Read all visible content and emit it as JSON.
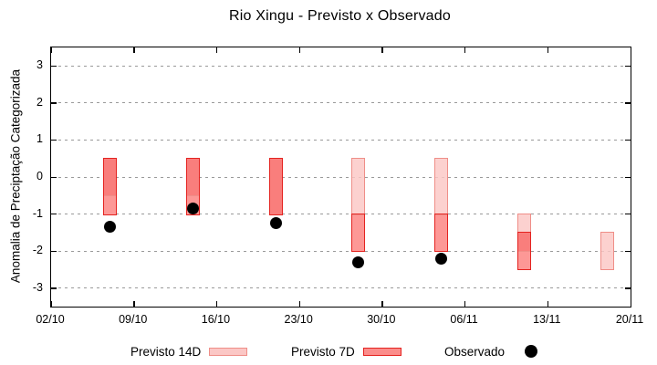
{
  "chart_data": {
    "type": "bar",
    "subtype": "forecast-interval-bars-with-observed-scatter",
    "title": "Rio Xingu - Previsto x Observado",
    "ylabel": "Anomalia de Preciptação Categorizada",
    "xlabel": "",
    "x_tick_labels": [
      "02/10",
      "09/10",
      "16/10",
      "23/10",
      "30/10",
      "06/11",
      "13/11",
      "20/11"
    ],
    "xlim_dates": [
      "02/10",
      "20/11"
    ],
    "y_ticks": [
      -3,
      -2,
      -1,
      0,
      1,
      2,
      3
    ],
    "ylim": [
      -3.5,
      3.5
    ],
    "grid": "horizontal-dashed-gray",
    "grid_color": "#9a9a9a",
    "legend_position": "below-plot",
    "fill_overlap": "#f97e7c",
    "series": [
      {
        "name": "Previsto 14D",
        "type": "interval",
        "fill": "#fbc7c5",
        "border": "#ef8e88",
        "intervals": [
          {
            "date": "07/10",
            "top": 0.5,
            "bottom": -0.5
          },
          {
            "date": "14/10",
            "top": 0.5,
            "bottom": -0.5
          },
          {
            "date": "21/10",
            "top": 0.5,
            "bottom": -1.0
          },
          {
            "date": "28/10",
            "top": 0.5,
            "bottom": -1.0
          },
          {
            "date": "04/11",
            "top": 0.5,
            "bottom": -1.0
          },
          {
            "date": "11/11",
            "top": -1.0,
            "bottom": -2.0
          },
          {
            "date": "18/11",
            "top": -1.5,
            "bottom": -2.5
          }
        ]
      },
      {
        "name": "Previsto 7D",
        "type": "interval",
        "fill": "#fd9896",
        "border": "#e42320",
        "intervals": [
          {
            "date": "07/10",
            "top": 0.5,
            "bottom": -1.0
          },
          {
            "date": "14/10",
            "top": 0.5,
            "bottom": -1.0
          },
          {
            "date": "21/10",
            "top": 0.5,
            "bottom": -1.0
          },
          {
            "date": "28/10",
            "top": -1.0,
            "bottom": -2.0
          },
          {
            "date": "04/11",
            "top": -1.0,
            "bottom": -2.0
          },
          {
            "date": "11/11",
            "top": -1.5,
            "bottom": -2.5
          }
        ]
      },
      {
        "name": "Observado",
        "type": "scatter",
        "color": "#000000",
        "points": [
          {
            "date": "07/10",
            "value": -1.35
          },
          {
            "date": "14/10",
            "value": -0.85
          },
          {
            "date": "21/10",
            "value": -1.25
          },
          {
            "date": "28/10",
            "value": -2.3
          },
          {
            "date": "04/11",
            "value": -2.2
          }
        ]
      }
    ]
  }
}
